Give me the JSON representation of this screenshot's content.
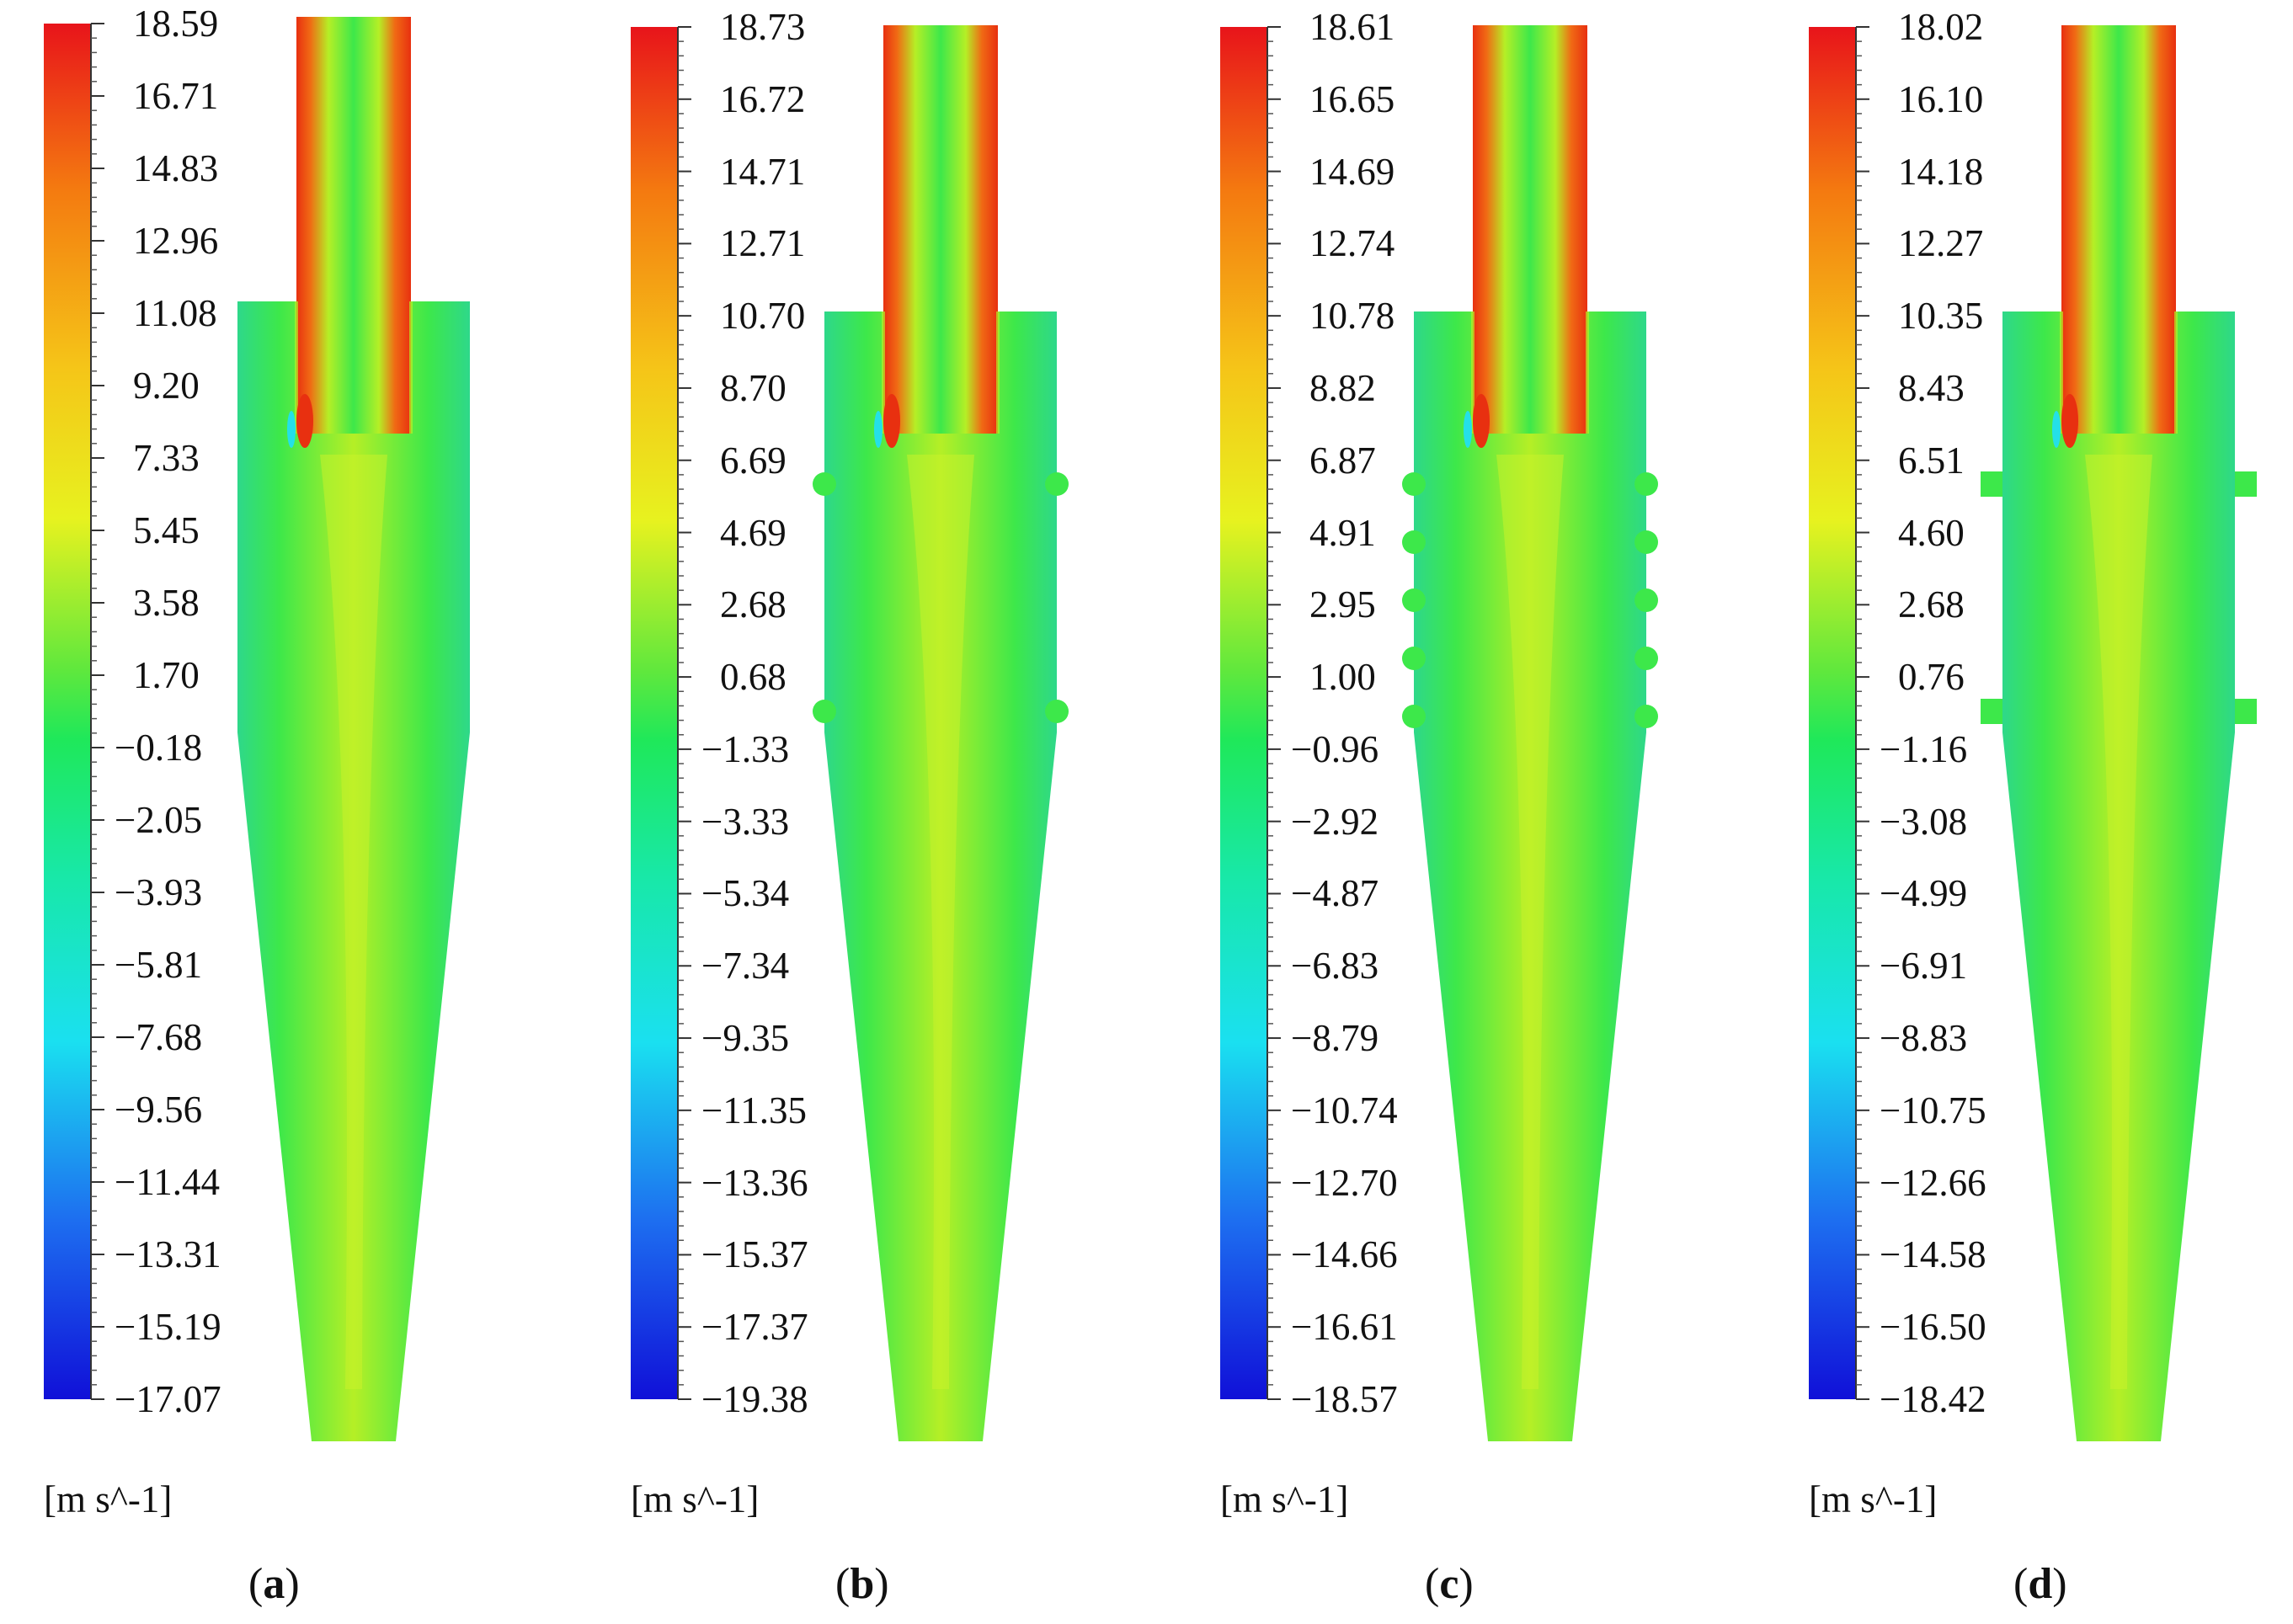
{
  "figure": {
    "unit_label": "[m s^-1]",
    "panels": [
      {
        "id": "a",
        "caption_open": "(",
        "caption_letter": "a",
        "caption_close": ")",
        "legend": [
          "18.59",
          "16.71",
          "14.83",
          "12.96",
          "11.08",
          "9.20",
          "7.33",
          "5.45",
          "3.58",
          "1.70",
          "−0.18",
          "−2.05",
          "−3.93",
          "−5.81",
          "−7.68",
          "−9.56",
          "−11.44",
          "−13.31",
          "−15.19",
          "−17.07"
        ],
        "side_features": "none"
      },
      {
        "id": "b",
        "caption_open": "(",
        "caption_letter": "b",
        "caption_close": ")",
        "legend": [
          "18.73",
          "16.72",
          "14.71",
          "12.71",
          "10.70",
          "8.70",
          "6.69",
          "4.69",
          "2.68",
          "0.68",
          "−1.33",
          "−3.33",
          "−5.34",
          "−7.34",
          "−9.35",
          "−11.35",
          "−13.36",
          "−15.37",
          "−17.37",
          "−19.38"
        ],
        "side_features": "two-round"
      },
      {
        "id": "c",
        "caption_open": "(",
        "caption_letter": "c",
        "caption_close": ")",
        "legend": [
          "18.61",
          "16.65",
          "14.69",
          "12.74",
          "10.78",
          "8.82",
          "6.87",
          "4.91",
          "2.95",
          "1.00",
          "−0.96",
          "−2.92",
          "−4.87",
          "−6.83",
          "−8.79",
          "−10.74",
          "−12.70",
          "−14.66",
          "−16.61",
          "−18.57"
        ],
        "side_features": "five-round"
      },
      {
        "id": "d",
        "caption_open": "(",
        "caption_letter": "d",
        "caption_close": ")",
        "legend": [
          "18.02",
          "16.10",
          "14.18",
          "12.27",
          "10.35",
          "8.43",
          "6.51",
          "4.60",
          "2.68",
          "0.76",
          "−1.16",
          "−3.08",
          "−4.99",
          "−6.91",
          "−8.83",
          "−10.75",
          "−12.66",
          "−14.58",
          "−16.50",
          "−18.42"
        ],
        "side_features": "two-rect"
      }
    ],
    "colors": {
      "field_base": "#3de84a",
      "field_core": "#b5ef26",
      "jet": "#f06a14",
      "jet_hot": "#e83010",
      "wall": "#2ed88a",
      "eddy": "#24e0e8"
    }
  }
}
